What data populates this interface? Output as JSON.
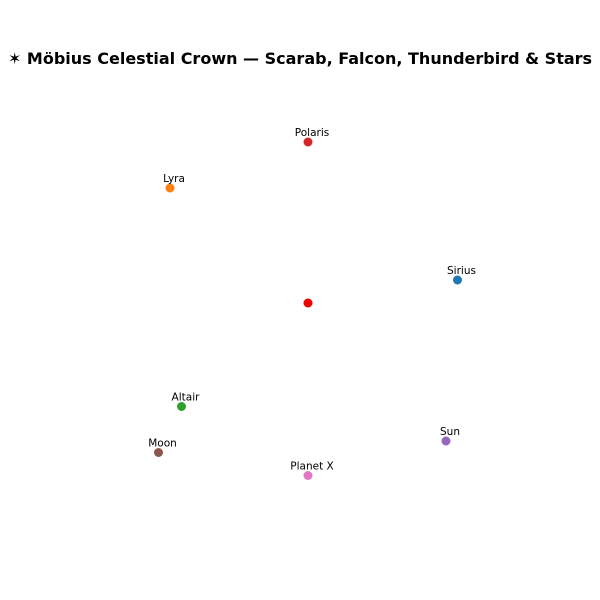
{
  "chart_data": {
    "type": "scatter",
    "title": "✶ Möbius Celestial Crown — Scarab, Falcon, Thunderbird & Stars",
    "xlabel": "",
    "ylabel": "",
    "xlim": [
      -1,
      1
    ],
    "ylim": [
      -1,
      1
    ],
    "grid": false,
    "axes_visible": false,
    "legend": "none",
    "points": [
      {
        "label": "Polaris",
        "x": 0.0,
        "y": 0.7,
        "color": "#d62728"
      },
      {
        "label": "Lyra",
        "x": -0.6,
        "y": 0.5,
        "color": "#ff7f0e"
      },
      {
        "label": "Sirius",
        "x": 0.65,
        "y": 0.1,
        "color": "#1f77b4"
      },
      {
        "label": "",
        "x": 0.0,
        "y": 0.0,
        "color": "#ee0000"
      },
      {
        "label": "Altair",
        "x": -0.55,
        "y": -0.45,
        "color": "#2ca02c"
      },
      {
        "label": "Sun",
        "x": 0.6,
        "y": -0.6,
        "color": "#9467bd"
      },
      {
        "label": "Moon",
        "x": -0.65,
        "y": -0.65,
        "color": "#8c564b"
      },
      {
        "label": "Planet X",
        "x": 0.0,
        "y": -0.75,
        "color": "#e377c2"
      }
    ]
  }
}
